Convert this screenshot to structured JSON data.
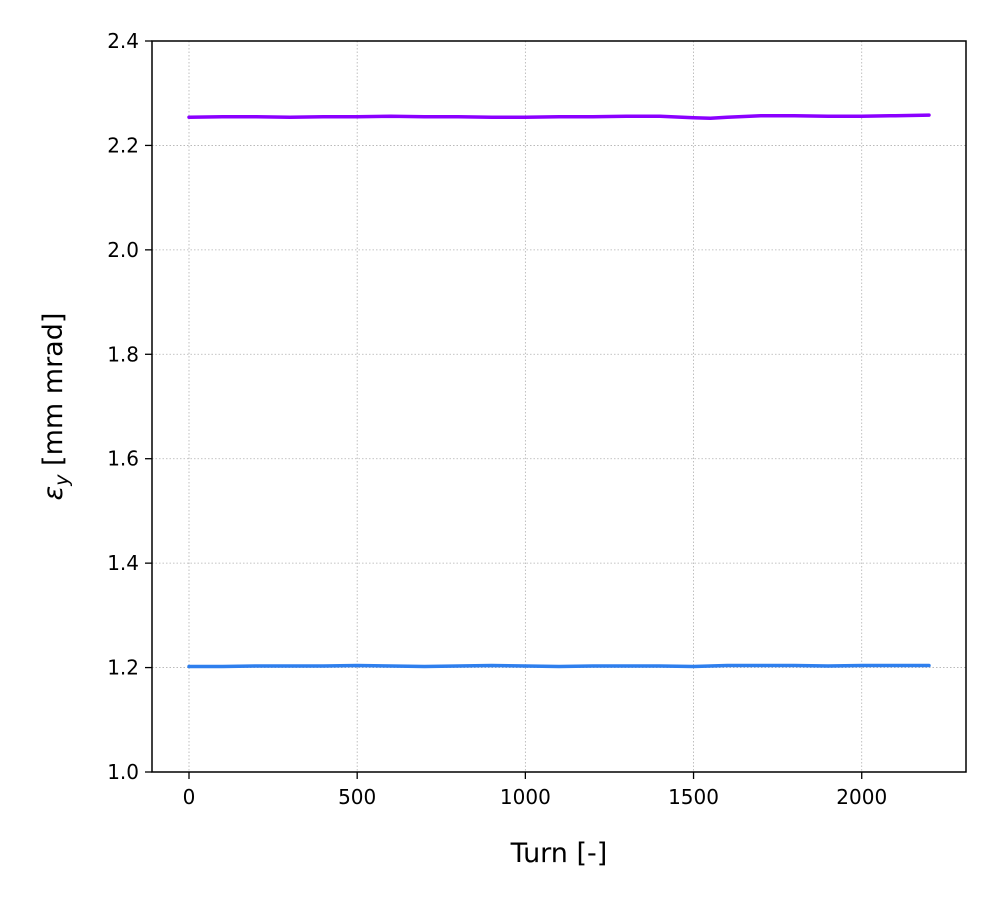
{
  "chart_data": {
    "type": "line",
    "title": "",
    "xlabel": "Turn [-]",
    "ylabel": {
      "symbol": "ε",
      "subscript": "y",
      "unit": " [mm mrad]"
    },
    "xlim": [
      -110,
      2310
    ],
    "ylim": [
      1.0,
      2.4
    ],
    "x_ticks": [
      0,
      500,
      1000,
      1500,
      2000
    ],
    "y_ticks": [
      1.0,
      1.2,
      1.4,
      1.6,
      1.8,
      2.0,
      2.2,
      2.4
    ],
    "x_tick_labels": [
      "0",
      "500",
      "1000",
      "1500",
      "2000"
    ],
    "y_tick_labels": [
      "1.0",
      "1.2",
      "1.4",
      "1.6",
      "1.8",
      "2.0",
      "2.2",
      "2.4"
    ],
    "grid": true,
    "series": [
      {
        "color": "#8b00ff",
        "x": [
          0,
          100,
          200,
          300,
          400,
          500,
          600,
          700,
          800,
          900,
          1000,
          1100,
          1200,
          1300,
          1400,
          1500,
          1550,
          1600,
          1700,
          1800,
          1900,
          2000,
          2100,
          2200
        ],
        "y": [
          2.254,
          2.255,
          2.255,
          2.254,
          2.255,
          2.255,
          2.256,
          2.255,
          2.255,
          2.254,
          2.254,
          2.255,
          2.255,
          2.256,
          2.256,
          2.253,
          2.252,
          2.254,
          2.257,
          2.257,
          2.256,
          2.256,
          2.257,
          2.258
        ]
      },
      {
        "color": "#2e7fee",
        "x": [
          0,
          100,
          200,
          300,
          400,
          500,
          600,
          700,
          800,
          900,
          1000,
          1100,
          1200,
          1300,
          1400,
          1500,
          1600,
          1700,
          1800,
          1900,
          2000,
          2100,
          2200
        ],
        "y": [
          1.202,
          1.202,
          1.203,
          1.203,
          1.203,
          1.204,
          1.203,
          1.202,
          1.203,
          1.204,
          1.203,
          1.202,
          1.203,
          1.203,
          1.203,
          1.202,
          1.204,
          1.204,
          1.204,
          1.203,
          1.204,
          1.204,
          1.204
        ]
      }
    ]
  }
}
